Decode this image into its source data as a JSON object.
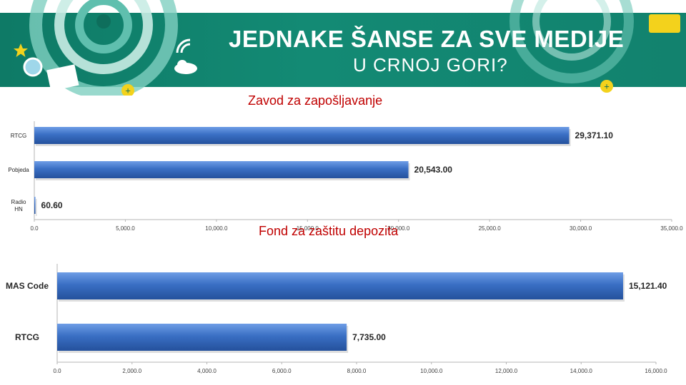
{
  "banner": {
    "title": "JEDNAKE ŠANSE ZA SVE MEDIJE",
    "subtitle": "U CRNOJ GORI?"
  },
  "colors": {
    "banner_green": "#12826e",
    "bar_blue": "#3a6fc4",
    "title_red": "#c00000"
  },
  "chart_data": [
    {
      "type": "bar",
      "orientation": "horizontal",
      "title": "Zavod za zapošljavanje",
      "categories": [
        "RTCG",
        "Pobjeda",
        "Radio HN"
      ],
      "category_lines": [
        [
          "RTCG"
        ],
        [
          "Pobjeda"
        ],
        [
          "Radio",
          "HN"
        ]
      ],
      "values": [
        29371.1,
        20543.0,
        60.6
      ],
      "value_labels": [
        "29,371.10",
        "20,543.00",
        "60.60"
      ],
      "xlim": [
        0,
        35000
      ],
      "ticks": [
        0,
        5000,
        10000,
        15000,
        20000,
        25000,
        30000,
        35000
      ],
      "tick_labels": [
        "0.0",
        "5,000.0",
        "10,000.0",
        "15,000.0",
        "20,000.0",
        "25,000.0",
        "30,000.0",
        "35,000.0"
      ],
      "xlabel": "",
      "ylabel": "",
      "grid": false
    },
    {
      "type": "bar",
      "orientation": "horizontal",
      "title": "Fond za zaštitu depozita",
      "categories": [
        "MAS Code",
        "RTCG"
      ],
      "category_lines": [
        [
          "MAS Code"
        ],
        [
          "RTCG"
        ]
      ],
      "values": [
        15121.4,
        7735.0
      ],
      "value_labels": [
        "15,121.40",
        "7,735.00"
      ],
      "xlim": [
        0,
        16000
      ],
      "ticks": [
        0,
        2000,
        4000,
        6000,
        8000,
        10000,
        12000,
        14000,
        16000
      ],
      "tick_labels": [
        "0.0",
        "2,000.0",
        "4,000.0",
        "6,000.0",
        "8,000.0",
        "10,000.0",
        "12,000.0",
        "14,000.0",
        "16,000.0"
      ],
      "xlabel": "",
      "ylabel": "",
      "grid": false
    }
  ]
}
